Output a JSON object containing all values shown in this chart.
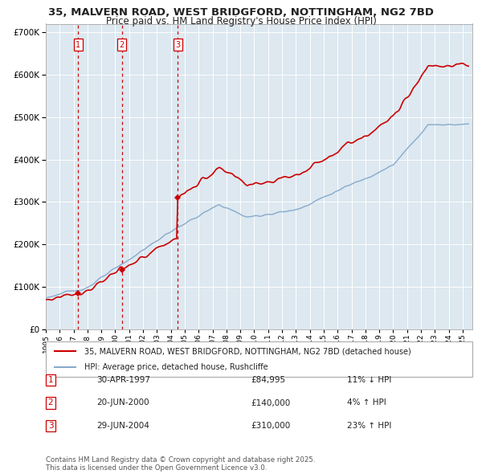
{
  "title_line1": "35, MALVERN ROAD, WEST BRIDGFORD, NOTTINGHAM, NG2 7BD",
  "title_line2": "Price paid vs. HM Land Registry's House Price Index (HPI)",
  "legend_property": "35, MALVERN ROAD, WEST BRIDGFORD, NOTTINGHAM, NG2 7BD (detached house)",
  "legend_hpi": "HPI: Average price, detached house, Rushcliffe",
  "transactions": [
    {
      "num": "1",
      "date": "30-APR-1997",
      "price": "£84,995",
      "hpi_diff": "11% ↓ HPI"
    },
    {
      "num": "2",
      "date": "20-JUN-2000",
      "price": "£140,000",
      "hpi_diff": "4% ↑ HPI"
    },
    {
      "num": "3",
      "date": "29-JUN-2004",
      "price": "£310,000",
      "hpi_diff": "23% ↑ HPI"
    }
  ],
  "transaction_dates_decimal": [
    1997.33,
    2000.47,
    2004.49
  ],
  "transaction_prices": [
    84995,
    140000,
    310000
  ],
  "property_color": "#cc0000",
  "hpi_color": "#88aacc",
  "background_color": "#dde8f0",
  "grid_color": "#ffffff",
  "vline_color": "#cc0000",
  "box_color": "#cc0000",
  "ylim": [
    0,
    720000
  ],
  "xlim_start": 1995.0,
  "xlim_end": 2025.7,
  "ytick_values": [
    0,
    100000,
    200000,
    300000,
    400000,
    500000,
    600000,
    700000
  ],
  "footer_text": "Contains HM Land Registry data © Crown copyright and database right 2025.\nThis data is licensed under the Open Government Licence v3.0."
}
